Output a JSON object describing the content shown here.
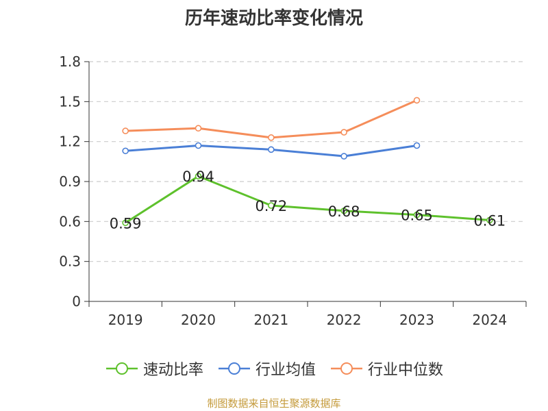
{
  "chart_data": {
    "type": "line",
    "title": "历年速动比率变化情况",
    "categories": [
      "2019",
      "2020",
      "2021",
      "2022",
      "2023",
      "2024"
    ],
    "ylim": [
      0,
      1.8
    ],
    "yticks": [
      "0",
      "0.3",
      "0.6",
      "0.9",
      "1.2",
      "1.5",
      "1.8"
    ],
    "ytick_values": [
      0,
      0.3,
      0.6,
      0.9,
      1.2,
      1.5,
      1.8
    ],
    "grid": true,
    "series": [
      {
        "name": "速动比率",
        "color": "#5ec12c",
        "values": [
          0.59,
          0.94,
          0.72,
          0.68,
          0.65,
          0.61
        ],
        "labels": [
          "0.59",
          "0.94",
          "0.72",
          "0.68",
          "0.65",
          "0.61"
        ],
        "show_labels": true
      },
      {
        "name": "行业均值",
        "color": "#4a7fd6",
        "values": [
          1.13,
          1.17,
          1.14,
          1.09,
          1.17,
          null
        ],
        "show_labels": false
      },
      {
        "name": "行业中位数",
        "color": "#f58d5a",
        "values": [
          1.28,
          1.3,
          1.23,
          1.27,
          1.51,
          null
        ],
        "show_labels": false
      }
    ],
    "legend_position": "bottom"
  },
  "footer": {
    "source": "制图数据来自恒生聚源数据库"
  }
}
